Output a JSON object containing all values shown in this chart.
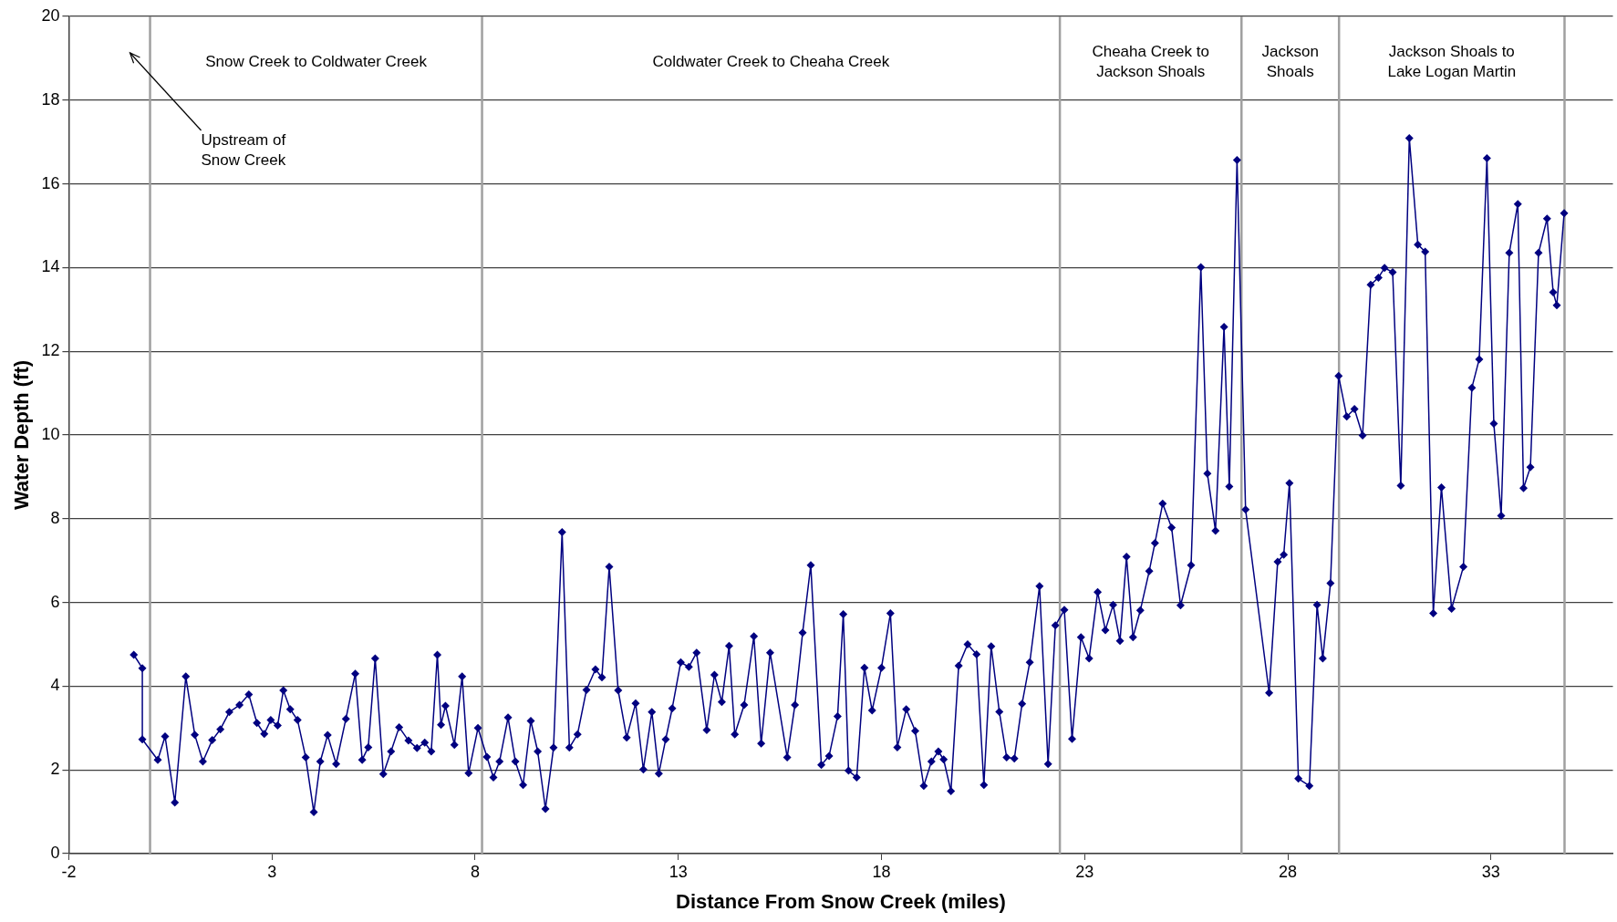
{
  "chart_data": {
    "type": "line",
    "xlabel": "Distance From Snow Creek (miles)",
    "ylabel": "Water Depth (ft)",
    "color": "#000080",
    "marker": "diamond",
    "line_style": "solid",
    "grid": "y",
    "legend": false,
    "xlim": [
      -2,
      36
    ],
    "xticks": [
      -2,
      3,
      8,
      13,
      18,
      23,
      28,
      33
    ],
    "ylim": [
      0,
      20
    ],
    "yticks": [
      0,
      2,
      4,
      6,
      8,
      10,
      12,
      14,
      16,
      18,
      20
    ],
    "x": [
      -0.4,
      -0.19,
      -0.19,
      0.19,
      0.37,
      0.61,
      0.88,
      1.1,
      1.3,
      1.53,
      1.73,
      1.95,
      2.2,
      2.43,
      2.63,
      2.81,
      2.97,
      3.14,
      3.28,
      3.45,
      3.63,
      3.83,
      4.03,
      4.19,
      4.37,
      4.58,
      4.82,
      5.05,
      5.22,
      5.37,
      5.54,
      5.74,
      5.93,
      6.13,
      6.36,
      6.57,
      6.76,
      6.92,
      7.07,
      7.16,
      7.27,
      7.49,
      7.68,
      7.84,
      8.07,
      8.29,
      8.45,
      8.6,
      8.81,
      8.99,
      9.18,
      9.37,
      9.54,
      9.73,
      9.93,
      10.14,
      10.32,
      10.52,
      10.74,
      10.96,
      11.12,
      11.3,
      11.52,
      11.73,
      11.95,
      12.14,
      12.35,
      12.52,
      12.69,
      12.85,
      13.06,
      13.26,
      13.45,
      13.7,
      13.89,
      14.07,
      14.25,
      14.39,
      14.62,
      14.86,
      15.04,
      15.26,
      15.68,
      15.87,
      16.06,
      16.26,
      16.52,
      16.71,
      16.92,
      17.06,
      17.19,
      17.39,
      17.58,
      17.77,
      18.0,
      18.22,
      18.39,
      18.61,
      18.83,
      19.04,
      19.23,
      19.4,
      19.53,
      19.71,
      19.9,
      20.12,
      20.34,
      20.52,
      20.7,
      20.9,
      21.08,
      21.27,
      21.46,
      21.65,
      21.89,
      22.1,
      22.28,
      22.5,
      22.69,
      22.91,
      23.11,
      23.32,
      23.51,
      23.7,
      23.87,
      24.03,
      24.19,
      24.37,
      24.59,
      24.73,
      24.92,
      25.14,
      25.36,
      25.62,
      25.86,
      26.02,
      26.22,
      26.43,
      26.56,
      26.75,
      26.96,
      27.54,
      27.75,
      27.9,
      28.04,
      28.26,
      28.53,
      28.72,
      28.86,
      29.05,
      29.25,
      29.45,
      29.64,
      29.84,
      30.04,
      30.23,
      30.38,
      30.58,
      30.78,
      30.99,
      31.2,
      31.38,
      31.58,
      31.78,
      32.03,
      32.32,
      32.53,
      32.71,
      32.9,
      33.07,
      33.25,
      33.45,
      33.66,
      33.8,
      33.97,
      34.17,
      34.38,
      34.53,
      34.62,
      34.8
    ],
    "values": [
      4.75,
      4.43,
      2.73,
      2.24,
      2.8,
      1.22,
      4.23,
      2.84,
      2.2,
      2.71,
      2.97,
      3.38,
      3.55,
      3.8,
      3.12,
      2.86,
      3.19,
      3.06,
      3.9,
      3.45,
      3.19,
      2.3,
      0.99,
      2.2,
      2.83,
      2.14,
      3.22,
      4.3,
      2.24,
      2.54,
      4.66,
      1.9,
      2.44,
      3.02,
      2.7,
      2.52,
      2.65,
      2.44,
      4.75,
      3.08,
      3.53,
      2.6,
      4.23,
      1.92,
      3.0,
      2.31,
      1.82,
      2.2,
      3.25,
      2.2,
      1.64,
      3.17,
      2.44,
      1.07,
      2.53,
      7.68,
      2.53,
      2.85,
      3.91,
      4.4,
      4.21,
      6.85,
      3.9,
      2.77,
      3.59,
      2.01,
      3.38,
      1.91,
      2.73,
      3.47,
      4.57,
      4.46,
      4.8,
      2.95,
      4.27,
      3.62,
      4.96,
      2.85,
      3.55,
      5.19,
      2.63,
      4.8,
      2.3,
      3.55,
      5.28,
      6.89,
      2.12,
      2.33,
      3.28,
      5.72,
      1.98,
      1.82,
      4.44,
      3.42,
      4.44,
      5.74,
      2.54,
      3.45,
      2.93,
      1.62,
      2.2,
      2.44,
      2.25,
      1.49,
      4.49,
      5.0,
      4.76,
      1.64,
      4.95,
      3.39,
      2.3,
      2.27,
      3.58,
      4.57,
      6.39,
      2.14,
      5.45,
      5.82,
      2.74,
      5.17,
      4.66,
      6.25,
      5.34,
      5.94,
      5.08,
      7.09,
      5.17,
      5.81,
      6.75,
      7.42,
      8.36,
      7.79,
      5.93,
      6.89,
      14.01,
      9.08,
      7.71,
      12.58,
      8.77,
      16.57,
      8.22,
      3.84,
      6.97,
      7.14,
      8.85,
      1.79,
      1.62,
      5.94,
      4.66,
      6.46,
      11.41,
      10.44,
      10.62,
      9.99,
      13.59,
      13.76,
      13.99,
      13.89,
      8.79,
      17.09,
      14.55,
      14.38,
      5.74,
      8.75,
      5.85,
      6.85,
      11.13,
      11.81,
      16.61,
      10.27,
      8.07,
      14.35,
      15.52,
      8.73,
      9.23,
      14.35,
      15.17,
      13.41,
      13.1,
      15.3
    ],
    "ref_lines": [
      {
        "axis": "x",
        "value": 0,
        "color": "#a0a0a0"
      },
      {
        "axis": "x",
        "value": 8.17,
        "color": "#a0a0a0"
      },
      {
        "axis": "x",
        "value": 22.39,
        "color": "#a0a0a0"
      },
      {
        "axis": "x",
        "value": 26.86,
        "color": "#a0a0a0"
      },
      {
        "axis": "x",
        "value": 29.26,
        "color": "#a0a0a0"
      },
      {
        "axis": "x",
        "value": 34.81,
        "color": "#a0a0a0"
      }
    ],
    "annotations": [
      "Upstream of\nSnow Creek",
      "Snow Creek to Coldwater Creek",
      "Coldwater Creek to Cheaha Creek",
      "Cheaha Creek to\nJackson Shoals",
      "Jackson\nShoals",
      "Jackson Shoals to\nLake Logan Martin"
    ]
  }
}
